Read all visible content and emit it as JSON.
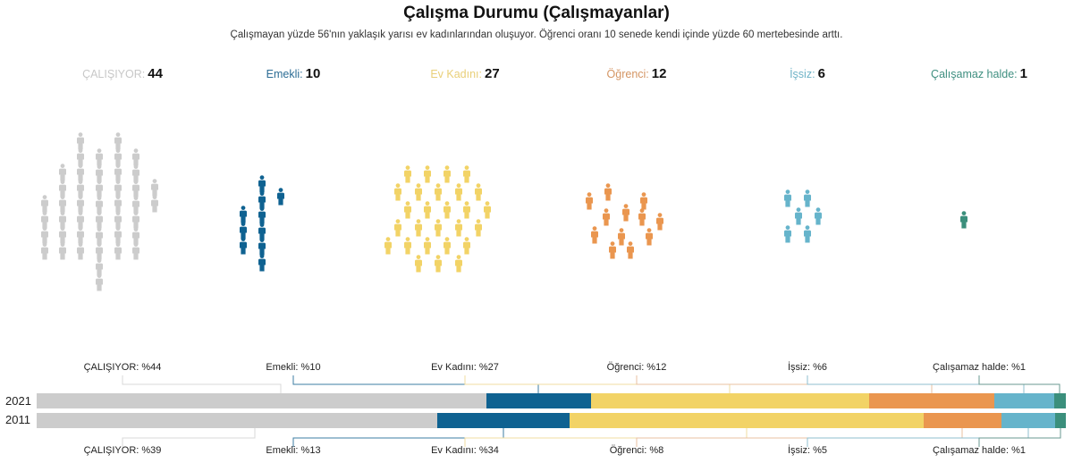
{
  "title": "Çalışma Durumu (Çalışmayanlar)",
  "subtitle": "Çalışmayan yüzde 56'nın yaklaşık yarısı ev kadınlarından oluşuyor. Öğrenci oranı 10 senede kendi içinde yüzde 60 mertebesinde arttı.",
  "categories": [
    {
      "label": "ÇALIŞIYOR:",
      "value": "44",
      "color": "#cccccc",
      "label_color": "#c8c8c8",
      "icon": "person-icon"
    },
    {
      "label": "Emekli:",
      "value": "10",
      "color": "#0f6291",
      "label_color": "#2d6d95",
      "icon": "person-icon"
    },
    {
      "label": "Ev Kadını:",
      "value": "27",
      "color": "#f2d366",
      "label_color": "#e9cf78",
      "icon": "person-icon"
    },
    {
      "label": "Öğrenci:",
      "value": "12",
      "color": "#ea964f",
      "label_color": "#d49563",
      "icon": "person-icon"
    },
    {
      "label": "İşsiz:",
      "value": "6",
      "color": "#66b4cb",
      "label_color": "#6fb3c7",
      "icon": "person-icon"
    },
    {
      "label": "Çalışamaz halde:",
      "value": "1",
      "color": "#3b8f7c",
      "label_color": "#3f8f80",
      "icon": "person-icon"
    }
  ],
  "bars": {
    "top_labels": [
      "ÇALIŞIYOR: %44",
      "Emekli: %10",
      "Ev Kadını: %27",
      "Öğrenci: %12",
      "İşsiz: %6",
      "Çalışamaz halde: %1"
    ],
    "bottom_labels": [
      "ÇALIŞIYOR: %39",
      "Emekli: %13",
      "Ev Kadını: %34",
      "Öğrenci: %8",
      "İşsiz: %5",
      "Çalışamaz halde: %1"
    ],
    "years": [
      "2021",
      "2011"
    ]
  },
  "chart_data": [
    {
      "type": "pictogram",
      "title": "Çalışma Durumu (Çalışmayanlar)",
      "subtitle": "Çalışmayan yüzde 56'nın yaklaşık yarısı ev kadınlarından oluşuyor. Öğrenci oranı 10 senede kendi içinde yüzde 60 mertebesinde arttı.",
      "categories": [
        "ÇALIŞIYOR",
        "Emekli",
        "Ev Kadını",
        "Öğrenci",
        "İşsiz",
        "Çalışamaz halde"
      ],
      "values": [
        44,
        10,
        27,
        12,
        6,
        1
      ],
      "colors": [
        "#cccccc",
        "#0f6291",
        "#f2d366",
        "#ea964f",
        "#66b4cb",
        "#3b8f7c"
      ]
    },
    {
      "type": "bar",
      "orientation": "horizontal-stacked-100",
      "categories": [
        "2021",
        "2011"
      ],
      "series": [
        {
          "name": "ÇALIŞIYOR",
          "values": [
            44,
            39
          ],
          "color": "#cccccc"
        },
        {
          "name": "Emekli",
          "values": [
            10,
            13
          ],
          "color": "#0f6291"
        },
        {
          "name": "Ev Kadını",
          "values": [
            27,
            34
          ],
          "color": "#f2d366"
        },
        {
          "name": "Öğrenci",
          "values": [
            12,
            8
          ],
          "color": "#ea964f"
        },
        {
          "name": "İşsiz",
          "values": [
            6,
            5
          ],
          "color": "#66b4cb"
        },
        {
          "name": "Çalışamaz halde",
          "values": [
            1,
            1
          ],
          "color": "#3b8f7c"
        }
      ],
      "xlim": [
        0,
        100
      ],
      "grid": false,
      "legend": "annotated labels above (2021) and below (2011)"
    }
  ]
}
